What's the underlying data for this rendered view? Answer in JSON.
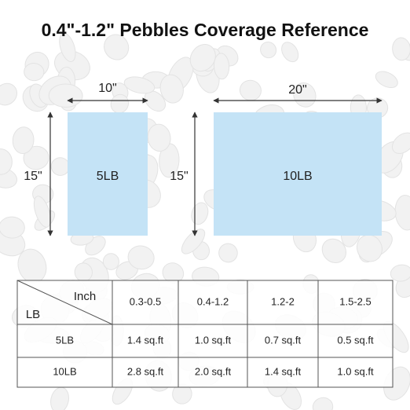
{
  "title": "0.4\"-1.2\" Pebbles Coverage Reference",
  "boxes": [
    {
      "label": "5LB",
      "width": "10\"",
      "height": "15\""
    },
    {
      "label": "10LB",
      "width": "20\"",
      "height": "15\""
    }
  ],
  "table": {
    "corner": {
      "column_header": "Inch",
      "row_header": "LB"
    },
    "columns": [
      "0.3-0.5",
      "0.4-1.2",
      "1.2-2",
      "1.5-2.5"
    ],
    "rows": [
      [
        "5LB",
        "1.4 sq.ft",
        "1.0 sq.ft",
        "0.7 sq.ft",
        "0.5 sq.ft"
      ],
      [
        "10LB",
        "2.8 sq.ft",
        "2.0 sq.ft",
        "1.4 sq.ft",
        "1.0 sq.ft"
      ]
    ]
  }
}
